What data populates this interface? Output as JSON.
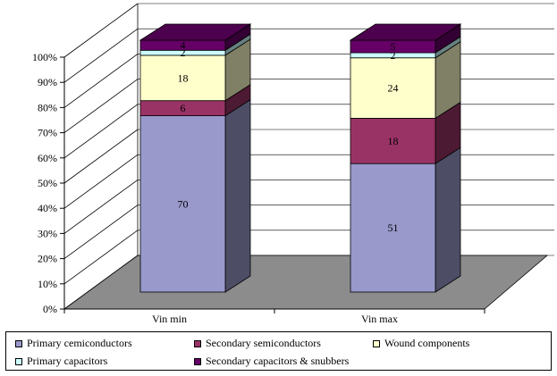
{
  "chart_data": {
    "type": "bar",
    "stacked": true,
    "three_d": true,
    "categories": [
      "Vin min",
      "Vin max"
    ],
    "series": [
      {
        "name": "Primary cemiconductors",
        "values": [
          70,
          51
        ],
        "labels": [
          "70",
          "51"
        ],
        "color": "#9999cc"
      },
      {
        "name": "Secondary semiconductors",
        "values": [
          6,
          18
        ],
        "labels": [
          "6",
          "18"
        ],
        "color": "#993366"
      },
      {
        "name": "Wound components",
        "values": [
          18,
          24
        ],
        "labels": [
          "18",
          "24"
        ],
        "color": "#ffffcc"
      },
      {
        "name": "Primary capacitors",
        "values": [
          2,
          2
        ],
        "labels": [
          "2",
          "2"
        ],
        "color": "#ccffff"
      },
      {
        "name": "Secondary capacitors & snubbers",
        "values": [
          4,
          5
        ],
        "labels": [
          "4",
          "5"
        ],
        "color": "#660066"
      }
    ],
    "y_ticks": [
      "0%",
      "10%",
      "20%",
      "30%",
      "40%",
      "50%",
      "60%",
      "70%",
      "80%",
      "90%",
      "100%"
    ],
    "ylim": [
      0,
      100
    ],
    "grid": true,
    "legend": "bottom"
  }
}
